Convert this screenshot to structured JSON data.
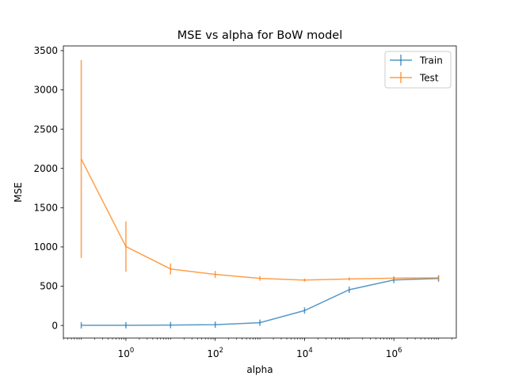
{
  "chart_data": {
    "type": "line",
    "title": "MSE vs alpha for BoW model",
    "xlabel": "alpha",
    "ylabel": "MSE",
    "xscale": "log",
    "xlim": [
      0.0398,
      25000000
    ],
    "ylim": [
      -160,
      3560
    ],
    "x": [
      0.1,
      1,
      10,
      100,
      1000,
      10000,
      100000,
      1000000,
      10000000
    ],
    "xticks": [
      {
        "value": 1,
        "base": "10",
        "exp": "0"
      },
      {
        "value": 100,
        "base": "10",
        "exp": "2"
      },
      {
        "value": 10000,
        "base": "10",
        "exp": "4"
      },
      {
        "value": 1000000,
        "base": "10",
        "exp": "6"
      }
    ],
    "yticks": [
      0,
      500,
      1000,
      1500,
      2000,
      2500,
      3000,
      3500
    ],
    "series": [
      {
        "name": "Train",
        "color": "#1f77b4",
        "values": [
          2,
          3,
          5,
          10,
          35,
          190,
          455,
          580,
          598
        ],
        "errors": [
          0,
          0,
          0,
          0,
          0,
          0,
          0,
          0,
          0
        ]
      },
      {
        "name": "Test",
        "color": "#ff7f0e",
        "values": [
          2120,
          1005,
          720,
          650,
          600,
          578,
          592,
          603,
          606
        ],
        "errors": [
          1260,
          320,
          70,
          45,
          30,
          20,
          20,
          22,
          25
        ]
      }
    ],
    "legend": {
      "position": "upper right"
    },
    "grid": false
  }
}
